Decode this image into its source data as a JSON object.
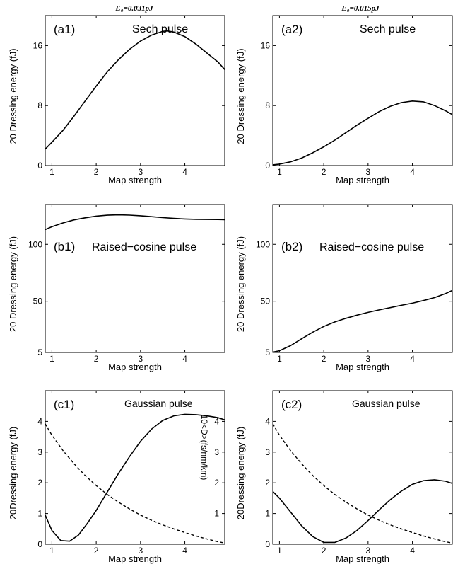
{
  "column_titles": [
    "E₀=0.031pJ",
    "E₀=0.015pJ"
  ],
  "chart_data": [
    {
      "id": "a1",
      "type": "line",
      "panel_label": "(a1)",
      "title": "Sech pulse",
      "xlabel": "Map strength",
      "ylabel": "20 Dressing energy (fJ)",
      "xlim": [
        0.85,
        4.9
      ],
      "ylim": [
        0,
        20
      ],
      "xticks": [
        1,
        2,
        3,
        4
      ],
      "yticks": [
        0,
        8,
        16
      ],
      "series": [
        {
          "style": "solid",
          "x": [
            0.85,
            1.0,
            1.25,
            1.5,
            1.75,
            2.0,
            2.25,
            2.5,
            2.75,
            3.0,
            3.25,
            3.5,
            3.6,
            3.75,
            4.0,
            4.25,
            4.5,
            4.75,
            4.9
          ],
          "y": [
            2.2,
            3.1,
            4.7,
            6.6,
            8.6,
            10.6,
            12.5,
            14.1,
            15.5,
            16.6,
            17.4,
            17.9,
            17.95,
            17.8,
            17.2,
            16.2,
            15.0,
            13.8,
            12.8
          ]
        }
      ]
    },
    {
      "id": "a2",
      "type": "line",
      "panel_label": "(a2)",
      "title": "Sech pulse",
      "xlabel": "Map strength",
      "ylabel": "20 Dressing energy (fJ)",
      "xlim": [
        0.85,
        4.9
      ],
      "ylim": [
        0,
        20
      ],
      "xticks": [
        1,
        2,
        3,
        4
      ],
      "yticks": [
        0,
        8,
        16
      ],
      "series": [
        {
          "style": "solid",
          "x": [
            0.85,
            1.0,
            1.25,
            1.5,
            1.75,
            2.0,
            2.25,
            2.5,
            2.75,
            3.0,
            3.25,
            3.5,
            3.75,
            4.0,
            4.25,
            4.5,
            4.75,
            4.9
          ],
          "y": [
            0.1,
            0.2,
            0.5,
            1.0,
            1.7,
            2.5,
            3.4,
            4.4,
            5.4,
            6.3,
            7.2,
            7.9,
            8.4,
            8.6,
            8.5,
            8.0,
            7.3,
            6.8
          ]
        }
      ]
    },
    {
      "id": "b1",
      "type": "line",
      "panel_label": "(b1)",
      "title": "Raised−cosine pulse",
      "xlabel": "Map strength",
      "ylabel": "20 Dressing energy (fJ)",
      "xlim": [
        0.85,
        4.9
      ],
      "ylim": [
        5,
        135
      ],
      "xticks": [
        1,
        2,
        3,
        4
      ],
      "yticks": [
        5,
        50,
        100
      ],
      "series": [
        {
          "style": "solid",
          "x": [
            0.85,
            1.0,
            1.25,
            1.5,
            1.75,
            2.0,
            2.25,
            2.5,
            2.75,
            3.0,
            3.25,
            3.5,
            3.75,
            4.0,
            4.25,
            4.5,
            4.75,
            4.9
          ],
          "y": [
            113,
            115.5,
            118.8,
            121.5,
            123.3,
            124.8,
            125.6,
            125.9,
            125.7,
            125.1,
            124.3,
            123.5,
            122.8,
            122.3,
            122.0,
            121.9,
            121.8,
            121.7
          ]
        }
      ]
    },
    {
      "id": "b2",
      "type": "line",
      "panel_label": "(b2)",
      "title": "Raised−cosine pulse",
      "xlabel": "Map strength",
      "ylabel": "20 Dressing energy (fJ)",
      "xlim": [
        0.85,
        4.9
      ],
      "ylim": [
        5,
        135
      ],
      "xticks": [
        1,
        2,
        3,
        4
      ],
      "yticks": [
        5,
        50,
        100
      ],
      "series": [
        {
          "style": "solid",
          "x": [
            0.85,
            1.0,
            1.25,
            1.5,
            1.75,
            2.0,
            2.25,
            2.5,
            2.75,
            3.0,
            3.25,
            3.5,
            3.75,
            4.0,
            4.25,
            4.5,
            4.75,
            4.9
          ],
          "y": [
            5.3,
            6.5,
            11.0,
            17.0,
            22.8,
            27.8,
            31.8,
            35.0,
            37.8,
            40.2,
            42.4,
            44.4,
            46.4,
            48.3,
            50.6,
            53.2,
            56.8,
            59.5
          ]
        }
      ]
    },
    {
      "id": "c1",
      "type": "line",
      "panel_label": "(c1)",
      "title": "Gaussian pulse",
      "xlabel": "Map strength",
      "ylabel": "20Dressing energy (fJ)",
      "ylabel_right": "10<D>(fs/nm/km)",
      "xlim": [
        0.85,
        4.9
      ],
      "ylim": [
        0,
        5
      ],
      "xticks": [
        1,
        2,
        3,
        4
      ],
      "yticks": [
        0,
        1,
        2,
        3,
        4
      ],
      "yticks_right": [
        1,
        2,
        3,
        4
      ],
      "series": [
        {
          "style": "solid",
          "x": [
            0.85,
            1.0,
            1.2,
            1.4,
            1.6,
            1.8,
            2.0,
            2.25,
            2.5,
            2.75,
            3.0,
            3.25,
            3.5,
            3.75,
            4.0,
            4.25,
            4.5,
            4.75,
            4.9
          ],
          "y": [
            0.95,
            0.45,
            0.12,
            0.1,
            0.3,
            0.68,
            1.1,
            1.7,
            2.3,
            2.85,
            3.35,
            3.75,
            4.03,
            4.18,
            4.23,
            4.22,
            4.18,
            4.12,
            4.05
          ]
        },
        {
          "style": "dashed",
          "x": [
            0.85,
            1.0,
            1.25,
            1.5,
            1.75,
            2.0,
            2.25,
            2.5,
            2.75,
            3.0,
            3.25,
            3.5,
            3.75,
            4.0,
            4.25,
            4.5,
            4.75,
            4.9
          ],
          "y": [
            3.92,
            3.55,
            3.05,
            2.62,
            2.24,
            1.91,
            1.62,
            1.37,
            1.15,
            0.95,
            0.78,
            0.63,
            0.5,
            0.38,
            0.27,
            0.17,
            0.08,
            0.04
          ]
        }
      ]
    },
    {
      "id": "c2",
      "type": "line",
      "panel_label": "(c2)",
      "title": "Gaussian pulse",
      "xlabel": "Map strength",
      "ylabel": "20Dressing energy (fJ)",
      "xlim": [
        0.85,
        4.9
      ],
      "ylim": [
        0,
        5
      ],
      "xticks": [
        1,
        2,
        3,
        4
      ],
      "yticks": [
        0,
        1,
        2,
        3,
        4
      ],
      "series": [
        {
          "style": "solid",
          "x": [
            0.85,
            1.0,
            1.25,
            1.5,
            1.75,
            2.0,
            2.25,
            2.5,
            2.75,
            3.0,
            3.25,
            3.5,
            3.75,
            4.0,
            4.25,
            4.5,
            4.75,
            4.9
          ],
          "y": [
            1.72,
            1.5,
            1.05,
            0.6,
            0.25,
            0.06,
            0.06,
            0.2,
            0.45,
            0.77,
            1.12,
            1.45,
            1.73,
            1.95,
            2.07,
            2.1,
            2.05,
            1.98
          ]
        },
        {
          "style": "dashed",
          "x": [
            0.85,
            1.0,
            1.25,
            1.5,
            1.75,
            2.0,
            2.25,
            2.5,
            2.75,
            3.0,
            3.25,
            3.5,
            3.75,
            4.0,
            4.25,
            4.5,
            4.75,
            4.9
          ],
          "y": [
            3.92,
            3.55,
            3.05,
            2.62,
            2.24,
            1.91,
            1.62,
            1.37,
            1.15,
            0.95,
            0.78,
            0.63,
            0.5,
            0.38,
            0.27,
            0.17,
            0.08,
            0.04
          ]
        }
      ]
    }
  ]
}
